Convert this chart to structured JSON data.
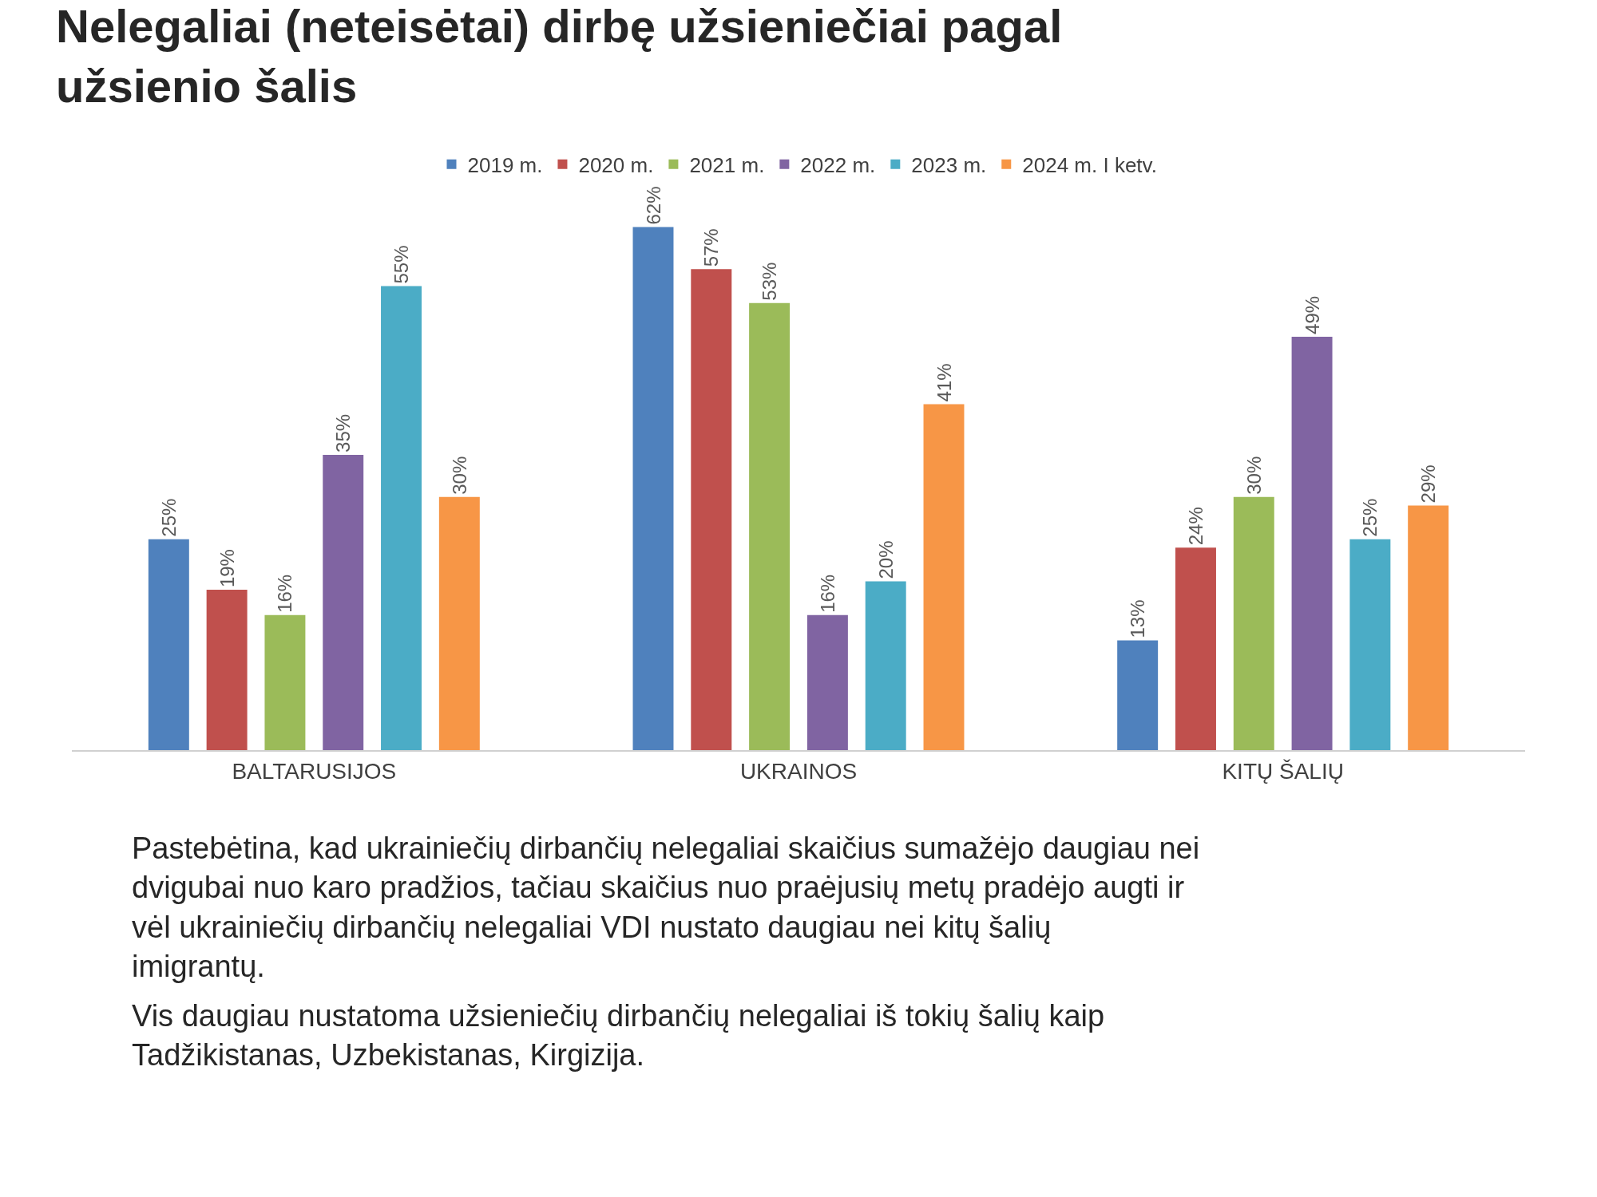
{
  "chart_data": {
    "type": "bar",
    "title": "Nelegaliai (neteisėtai) dirbę užsieniečiai pagal užsienio šalis",
    "categories": [
      "BALTARUSIJOS",
      "UKRAINOS",
      "KITŲ ŠALIŲ"
    ],
    "series": [
      {
        "name": "2019 m.",
        "color": "#4f81bd",
        "values": [
          25,
          62,
          13
        ],
        "value_labels": [
          "25%",
          "62%",
          "13%"
        ]
      },
      {
        "name": "2020 m.",
        "color": "#c0504d",
        "values": [
          19,
          57,
          24
        ],
        "value_labels": [
          "19%",
          "57%",
          "24%"
        ]
      },
      {
        "name": "2021 m.",
        "color": "#9bbb59",
        "values": [
          16,
          53,
          30
        ],
        "value_labels": [
          "16%",
          "53%",
          "30%"
        ]
      },
      {
        "name": "2022 m.",
        "color": "#8064a2",
        "values": [
          35,
          16,
          49
        ],
        "value_labels": [
          "35%",
          "16%",
          "49%"
        ]
      },
      {
        "name": "2023 m.",
        "color": "#4bacc6",
        "values": [
          55,
          20,
          25
        ],
        "value_labels": [
          "55%",
          "20%",
          "25%"
        ]
      },
      {
        "name": "2024 m. I ketv.",
        "color": "#f79646",
        "values": [
          30,
          41,
          29
        ],
        "value_labels": [
          "30%",
          "41%",
          "29%"
        ]
      }
    ],
    "legend": "top",
    "annotations": [
      "Pastebėtina, kad ukrainiečių dirbančių nelegaliai skaičius sumažėjo daugiau nei dvigubai nuo karo pradžios, tačiau skaičius nuo praėjusių metų pradėjo augti ir vėl ukrainiečių dirbančių nelegaliai VDI nustato daugiau nei kitų šalių imigrantų.",
      "Vis daugiau nustatoma užsieniečių dirbančių nelegaliai iš tokių šalių kaip Tadžikistanas, Uzbekistanas, Kirgizija."
    ]
  }
}
